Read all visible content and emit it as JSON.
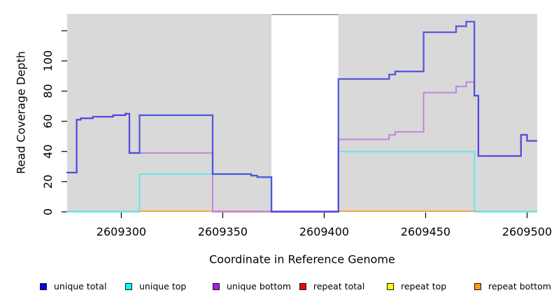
{
  "chart_data": {
    "type": "line",
    "step": true,
    "title": "",
    "xlabel": "Coordinate in Reference Genome",
    "ylabel": "Read Coverage Depth",
    "xlim": [
      2609273,
      2609505
    ],
    "ylim": [
      0,
      131
    ],
    "grid": false,
    "background": "#D9D9D9",
    "x_ticks": [
      {
        "x": 2609300,
        "label": "2609300"
      },
      {
        "x": 2609350,
        "label": "2609350"
      },
      {
        "x": 2609400,
        "label": "2609400"
      },
      {
        "x": 2609450,
        "label": "2609450"
      },
      {
        "x": 2609500,
        "label": "2609500"
      }
    ],
    "y_ticks": [
      {
        "v": 0,
        "label": "0"
      },
      {
        "v": 20,
        "label": "20"
      },
      {
        "v": 40,
        "label": "40"
      },
      {
        "v": 60,
        "label": "60"
      },
      {
        "v": 80,
        "label": "80"
      },
      {
        "v": 100,
        "label": "100"
      },
      {
        "v": 120,
        "label": ""
      }
    ],
    "masked_region": {
      "from": 2609374,
      "to": 2609407,
      "fill": "#FFFFFF",
      "top_border": "#8C8C8C"
    },
    "series": [
      {
        "name": "repeat total",
        "legend_color": "#EE0000",
        "draw": false,
        "draw_color": "#EE0000",
        "opacity": 1,
        "width": 1.6,
        "points": [
          [
            2609273,
            0
          ],
          [
            2609505,
            0
          ]
        ]
      },
      {
        "name": "repeat top",
        "legend_color": "#FFFF00",
        "draw": false,
        "draw_color": "#FFFF00",
        "opacity": 1,
        "width": 1.6,
        "points": [
          [
            2609273,
            0
          ],
          [
            2609505,
            0
          ]
        ]
      },
      {
        "name": "repeat bottom",
        "legend_color": "#FF9912",
        "draw": false,
        "draw_color": "#FF9912",
        "opacity": 1,
        "width": 1.6,
        "points": [
          [
            2609273,
            0
          ],
          [
            2609505,
            0
          ]
        ]
      },
      {
        "name": "unique top",
        "legend_color": "#00FFFF",
        "draw": true,
        "draw_color": "#62E6E6",
        "opacity": 1,
        "width": 2,
        "points": [
          [
            2609273,
            0
          ],
          [
            2609309,
            25
          ],
          [
            2609364,
            24
          ],
          [
            2609367,
            23
          ],
          [
            2609374,
            0
          ],
          [
            2609407,
            40
          ],
          [
            2609474,
            0
          ],
          [
            2609505,
            0
          ]
        ]
      },
      {
        "name": "unique bottom",
        "legend_color": "#A020F0",
        "draw": true,
        "draw_color": "#BF86DF",
        "opacity": 1,
        "width": 2,
        "points": [
          [
            2609273,
            26
          ],
          [
            2609278,
            61
          ],
          [
            2609280,
            62
          ],
          [
            2609286,
            63
          ],
          [
            2609296,
            64
          ],
          [
            2609302,
            65
          ],
          [
            2609304,
            39
          ],
          [
            2609345,
            0
          ],
          [
            2609407,
            48
          ],
          [
            2609432,
            51
          ],
          [
            2609435,
            53
          ],
          [
            2609449,
            79
          ],
          [
            2609465,
            83
          ],
          [
            2609470,
            86
          ],
          [
            2609474,
            77
          ],
          [
            2609476,
            37
          ],
          [
            2609497,
            51
          ],
          [
            2609500,
            47
          ],
          [
            2609505,
            47
          ]
        ]
      },
      {
        "name": "unique total",
        "legend_color": "#0000EE",
        "draw": true,
        "draw_color": "#4040DD",
        "opacity": 0.85,
        "width": 2.3,
        "points": [
          [
            2609273,
            26
          ],
          [
            2609278,
            61
          ],
          [
            2609280,
            62
          ],
          [
            2609286,
            63
          ],
          [
            2609296,
            64
          ],
          [
            2609302,
            65
          ],
          [
            2609304,
            39
          ],
          [
            2609309,
            64
          ],
          [
            2609345,
            25
          ],
          [
            2609364,
            24
          ],
          [
            2609367,
            23
          ],
          [
            2609374,
            0
          ],
          [
            2609407,
            88
          ],
          [
            2609432,
            91
          ],
          [
            2609435,
            93
          ],
          [
            2609449,
            119
          ],
          [
            2609465,
            123
          ],
          [
            2609470,
            126
          ],
          [
            2609474,
            77
          ],
          [
            2609476,
            37
          ],
          [
            2609497,
            51
          ],
          [
            2609500,
            47
          ],
          [
            2609505,
            47
          ]
        ]
      }
    ],
    "zero_line_segments": [
      {
        "from": 2609273,
        "to": 2609309,
        "color": "#98D69E"
      },
      {
        "from": 2609309,
        "to": 2609346,
        "color": "#FF9912"
      },
      {
        "from": 2609346,
        "to": 2609374,
        "color": "#DB7093"
      },
      {
        "from": 2609374,
        "to": 2609407,
        "color": "#6C5BDB"
      },
      {
        "from": 2609407,
        "to": 2609475,
        "color": "#FF9912"
      },
      {
        "from": 2609475,
        "to": 2609505,
        "color": "#98D69E"
      }
    ],
    "legend_position": "bottom"
  },
  "legend": {
    "items": [
      {
        "label": "unique total",
        "color": "#0000EE"
      },
      {
        "label": "unique top",
        "color": "#00FFFF"
      },
      {
        "label": "unique bottom",
        "color": "#A020F0"
      },
      {
        "label": "repeat total",
        "color": "#EE0000"
      },
      {
        "label": "repeat top",
        "color": "#FFFF00"
      },
      {
        "label": "repeat bottom",
        "color": "#FF9912"
      }
    ]
  }
}
